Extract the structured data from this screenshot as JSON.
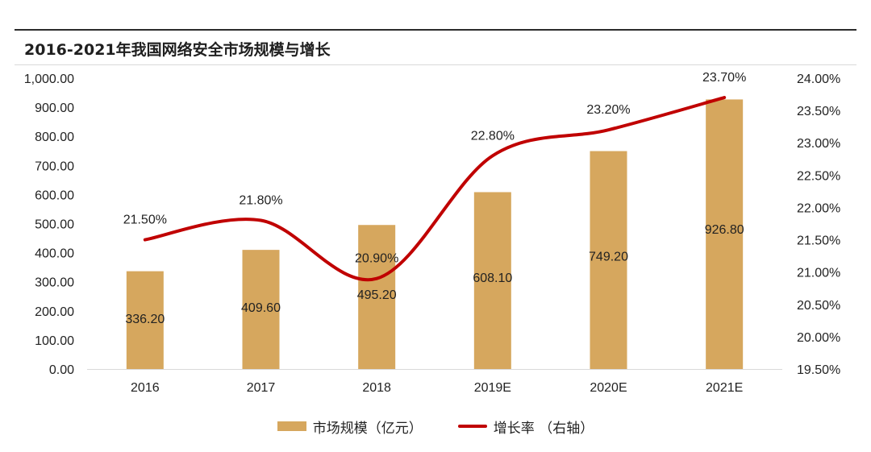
{
  "chart_data": {
    "type": "bar",
    "title": "2016-2021年我国网络安全市场规模与增长",
    "categories": [
      "2016",
      "2017",
      "2018",
      "2019E",
      "2020E",
      "2021E"
    ],
    "series": [
      {
        "name": "市场规模（亿元）",
        "type": "bar",
        "axis": "left",
        "color": "#d6a75e",
        "values": [
          336.2,
          409.6,
          495.2,
          608.1,
          749.2,
          926.8
        ],
        "labels": [
          "336.20",
          "409.60",
          "495.20",
          "608.10",
          "749.20",
          "926.80"
        ]
      },
      {
        "name": "增长率 （右轴）",
        "type": "line",
        "axis": "right",
        "color": "#c00000",
        "values": [
          21.5,
          21.8,
          20.9,
          22.8,
          23.2,
          23.7
        ],
        "labels": [
          "21.50%",
          "21.80%",
          "20.90%",
          "22.80%",
          "23.20%",
          "23.70%"
        ]
      }
    ],
    "y_left": {
      "range": [
        0,
        1000
      ],
      "ticks": [
        "0.00",
        "100.00",
        "200.00",
        "300.00",
        "400.00",
        "500.00",
        "600.00",
        "700.00",
        "800.00",
        "900.00",
        "1,000.00"
      ]
    },
    "y_right": {
      "range": [
        19.5,
        24.0
      ],
      "ticks": [
        "19.50%",
        "20.00%",
        "20.50%",
        "21.00%",
        "21.50%",
        "22.00%",
        "22.50%",
        "23.00%",
        "23.50%",
        "24.00%"
      ]
    },
    "grid": false,
    "legend": "bottom-center"
  }
}
